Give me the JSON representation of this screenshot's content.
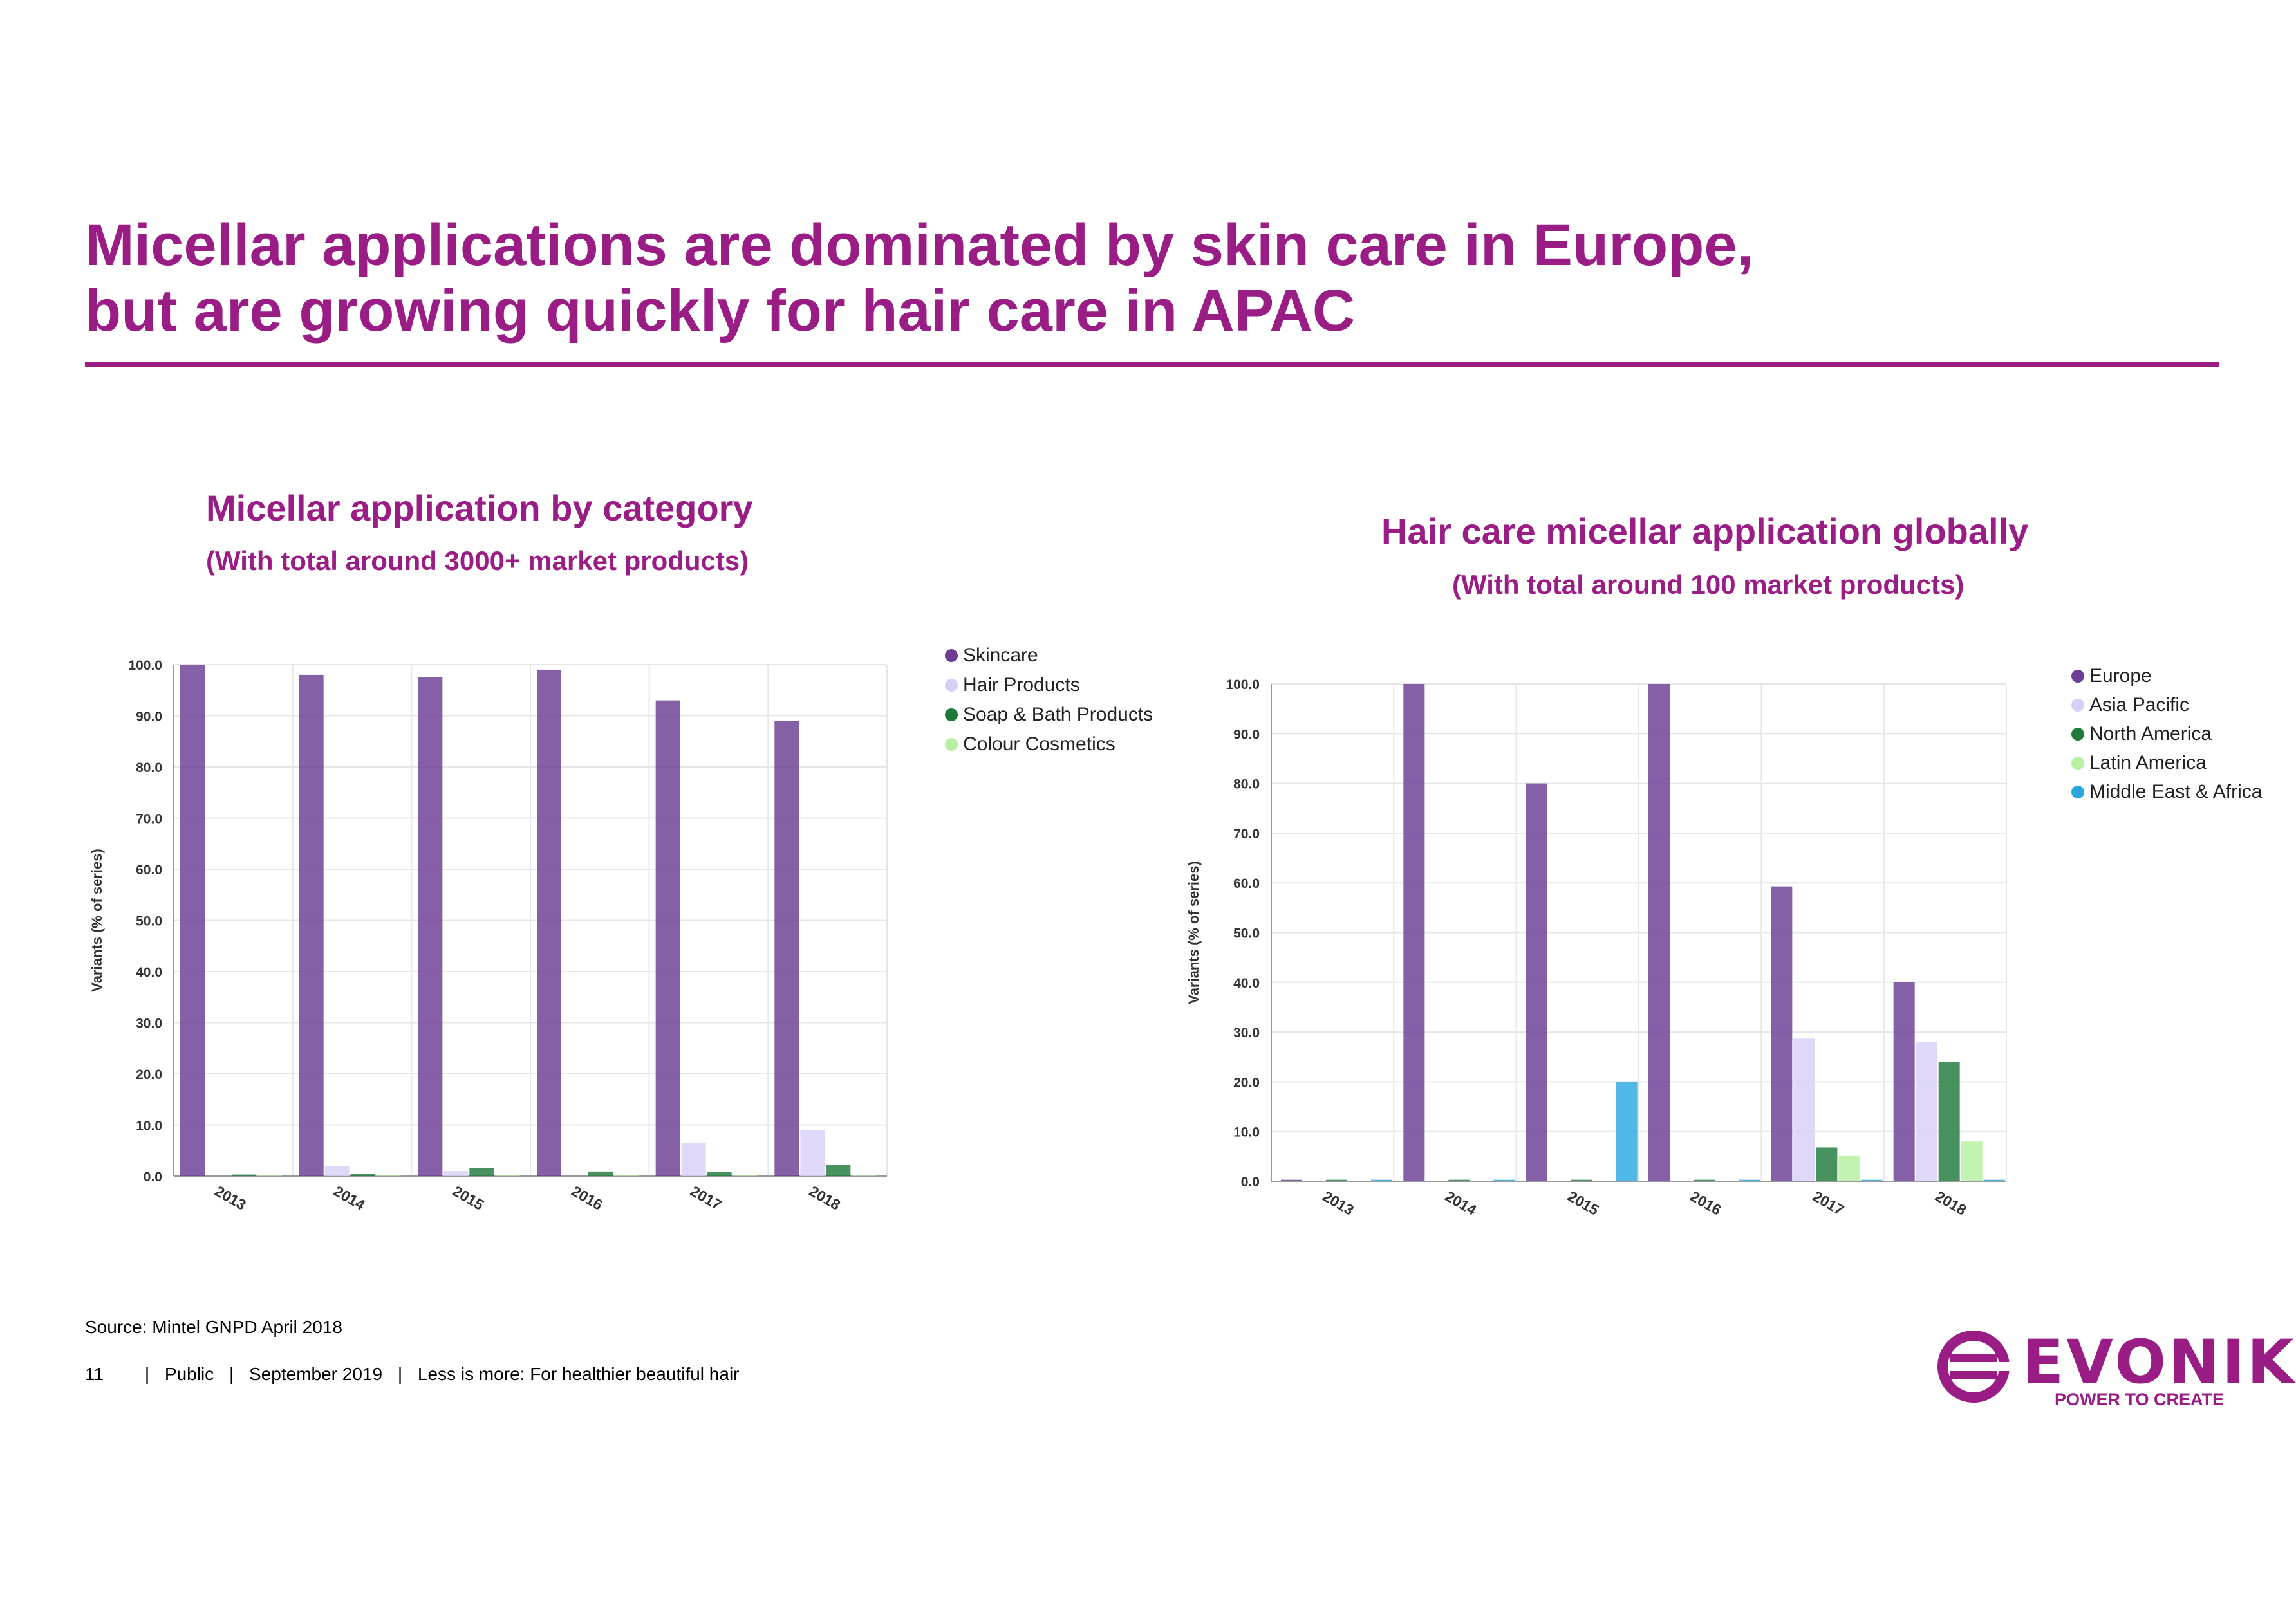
{
  "slide": {
    "title_line1": "Micellar applications are dominated by skin care in Europe,",
    "title_line2": "but are growing quickly for hair care in APAC",
    "accent_color": "#991d85"
  },
  "left": {
    "heading": "Micellar application by category",
    "subheading": "(With total around 3000+ market products)"
  },
  "right": {
    "heading": "Hair care micellar application globally",
    "subheading": "(With total around 100 market products)"
  },
  "source": "Source: Mintel GNPD April 2018",
  "footer": {
    "page": "11",
    "classification": "Public",
    "date": "September 2019",
    "topic": "Less is more: For healthier beautiful hair"
  },
  "logo": {
    "wordmark": "EVONIK",
    "tagline": "POWER TO CREATE",
    "icon": "evonik-e-icon"
  },
  "chart_data": [
    {
      "type": "bar",
      "title": "Micellar application by category",
      "xlabel": "",
      "ylabel": "Variants (% of series)",
      "ylim": [
        0,
        100
      ],
      "yticks": [
        "0.0",
        "10.0",
        "20.0",
        "30.0",
        "40.0",
        "50.0",
        "60.0",
        "70.0",
        "80.0",
        "90.0",
        "100.0"
      ],
      "categories": [
        "2013",
        "2014",
        "2015",
        "2016",
        "2017",
        "2018"
      ],
      "legend_position": "right",
      "series": [
        {
          "name": "Skincare",
          "color": "#6b3d94",
          "values": [
            100,
            98,
            97.5,
            99,
            93,
            89
          ]
        },
        {
          "name": "Hair Products",
          "color": "#d8cff8",
          "values": [
            0,
            2,
            1,
            0,
            6.5,
            9
          ]
        },
        {
          "name": "Soap & Bath Products",
          "color": "#1f7a3a",
          "values": [
            0.3,
            0.5,
            1.6,
            0.9,
            0.8,
            2.2
          ]
        },
        {
          "name": "Colour Cosmetics",
          "color": "#b6f0a0",
          "values": [
            0.1,
            0.1,
            0.1,
            0.1,
            0.1,
            0.1
          ]
        }
      ]
    },
    {
      "type": "bar",
      "title": "Hair care micellar application globally",
      "xlabel": "",
      "ylabel": "Variants (% of series)",
      "ylim": [
        0,
        100
      ],
      "yticks": [
        "0.0",
        "10.0",
        "20.0",
        "30.0",
        "40.0",
        "50.0",
        "60.0",
        "70.0",
        "80.0",
        "90.0",
        "100.0"
      ],
      "categories": [
        "2013",
        "2014",
        "2015",
        "2016",
        "2017",
        "2018"
      ],
      "legend_position": "right",
      "series": [
        {
          "name": "Europe",
          "color": "#6b3d94",
          "values": [
            0.3,
            100,
            80,
            100,
            59.3,
            40
          ]
        },
        {
          "name": "Asia Pacific",
          "color": "#d8cff8",
          "values": [
            0,
            0,
            0,
            0,
            28.7,
            28
          ]
        },
        {
          "name": "North America",
          "color": "#1f7a3a",
          "values": [
            0.3,
            0.3,
            0.3,
            0.3,
            6.8,
            24
          ]
        },
        {
          "name": "Latin America",
          "color": "#b6f0a0",
          "values": [
            0,
            0,
            0,
            0,
            5.2,
            8
          ]
        },
        {
          "name": "Middle East & Africa",
          "color": "#29a8e0",
          "values": [
            0.3,
            0.3,
            20,
            0.3,
            0.3,
            0.3
          ]
        }
      ]
    }
  ]
}
